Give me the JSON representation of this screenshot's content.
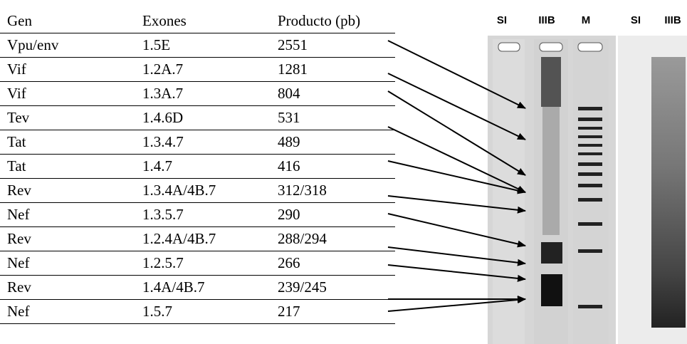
{
  "table": {
    "header": [
      "Gen",
      "Exones",
      "Producto (pb)"
    ],
    "rows": [
      [
        "Vpu/env",
        "1.5E",
        "2551"
      ],
      [
        "Vif",
        "1.2A.7",
        "1281"
      ],
      [
        "Vif",
        "1.3A.7",
        "804"
      ],
      [
        "Tev",
        "1.4.6D",
        "531"
      ],
      [
        "Tat",
        "1.3.4.7",
        "489"
      ],
      [
        "Tat",
        "1.4.7",
        "416"
      ],
      [
        "Rev",
        "1.3.4A/4B.7",
        "312/318"
      ],
      [
        "Nef",
        "1.3.5.7",
        "290"
      ],
      [
        "Rev",
        "1.2.4A/4B.7",
        "288/294"
      ],
      [
        "Nef",
        "1.2.5.7",
        "266"
      ],
      [
        "Rev",
        "1.4A/4B.7",
        "239/245"
      ],
      [
        "Nef",
        "1.5.7",
        "217"
      ]
    ]
  },
  "gel": {
    "lanes": [
      "SI",
      "IIIB",
      "M",
      "SI",
      "IIIB"
    ]
  }
}
